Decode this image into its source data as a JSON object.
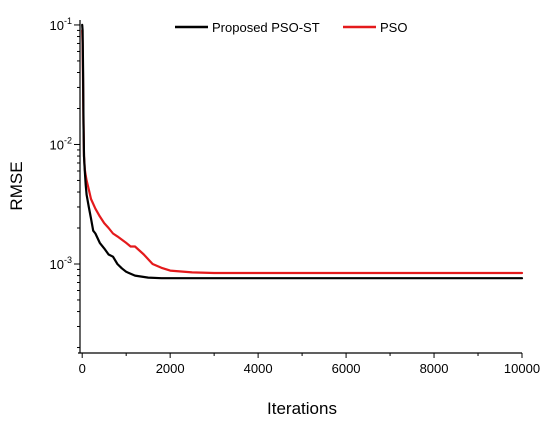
{
  "chart_data": {
    "type": "line",
    "xlabel": "Iterations",
    "ylabel": "RMSE",
    "x_scale": "linear",
    "y_scale": "log",
    "xlim": [
      -50,
      10000
    ],
    "ylim": [
      0.00018,
      0.11
    ],
    "x_ticks": [
      0,
      2000,
      4000,
      6000,
      8000,
      10000
    ],
    "x_tick_labels": [
      "0",
      "2000",
      "4000",
      "6000",
      "8000",
      "10000"
    ],
    "y_ticks": [
      0.1,
      0.01,
      0.001
    ],
    "y_tick_labels": [
      {
        "base": "10",
        "exp": "-1"
      },
      {
        "base": "10",
        "exp": "-2"
      },
      {
        "base": "10",
        "exp": "-3"
      }
    ],
    "grid": false,
    "legend_position": "top",
    "series": [
      {
        "name": "Proposed PSO-ST",
        "color": "#000000",
        "x": [
          0,
          10,
          20,
          30,
          40,
          60,
          80,
          100,
          150,
          200,
          250,
          300,
          400,
          500,
          600,
          700,
          800,
          900,
          1000,
          1200,
          1500,
          1800,
          2000,
          3000,
          5000,
          10000
        ],
        "y": [
          0.1,
          0.09,
          0.04,
          0.015,
          0.008,
          0.006,
          0.0046,
          0.0038,
          0.003,
          0.0024,
          0.0019,
          0.0018,
          0.0015,
          0.00135,
          0.0012,
          0.00115,
          0.001,
          0.00092,
          0.00086,
          0.0008,
          0.00077,
          0.00076,
          0.00076,
          0.00076,
          0.00076,
          0.00076
        ]
      },
      {
        "name": "PSO",
        "color": "#e41a1c",
        "x": [
          0,
          10,
          20,
          30,
          40,
          60,
          80,
          100,
          150,
          200,
          300,
          400,
          500,
          600,
          700,
          800,
          1000,
          1100,
          1200,
          1400,
          1600,
          1800,
          2000,
          2500,
          3000,
          5000,
          10000
        ],
        "y": [
          0.09,
          0.07,
          0.03,
          0.015,
          0.008,
          0.0062,
          0.0055,
          0.005,
          0.0042,
          0.0035,
          0.0029,
          0.0025,
          0.0022,
          0.002,
          0.0018,
          0.0017,
          0.0015,
          0.0014,
          0.0014,
          0.0012,
          0.001,
          0.00093,
          0.00088,
          0.00085,
          0.00084,
          0.00084,
          0.00084
        ]
      }
    ]
  }
}
